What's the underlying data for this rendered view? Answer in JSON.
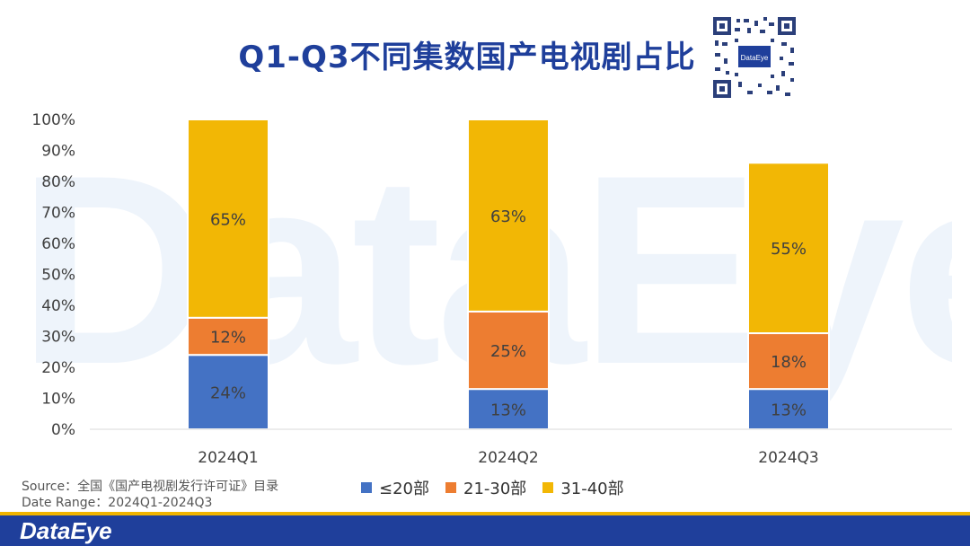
{
  "watermark": "DataEye",
  "title": "Q1-Q3不同集数国产电视剧占比",
  "qr": {
    "label": "DataEye"
  },
  "source_line": "Source：全国《国产电视剧发行许可证》目录",
  "date_line": "Date Range：2024Q1-2024Q3",
  "footer": {
    "logo": "DataEye"
  },
  "colors": {
    "blue": "#4472c4",
    "orange": "#ed7d31",
    "yellow": "#f2b705",
    "title": "#1f3f9b"
  },
  "chart_data": {
    "type": "bar",
    "stacked": true,
    "title": "Q1-Q3不同集数国产电视剧占比",
    "categories": [
      "2024Q1",
      "2024Q2",
      "2024Q3"
    ],
    "series": [
      {
        "name": "≤20部",
        "values": [
          24,
          13,
          13
        ],
        "labels": [
          "24%",
          "13%",
          "13%"
        ],
        "color": "#4472c4"
      },
      {
        "name": "21-30部",
        "values": [
          12,
          25,
          18
        ],
        "labels": [
          "12%",
          "25%",
          "18%"
        ],
        "color": "#ed7d31"
      },
      {
        "name": "31-40部",
        "values": [
          65,
          63,
          55
        ],
        "labels": [
          "65%",
          "63%",
          "55%"
        ],
        "color": "#f2b705"
      }
    ],
    "ylim": [
      0,
      100
    ],
    "yticks": [
      "0%",
      "10%",
      "20%",
      "30%",
      "40%",
      "50%",
      "60%",
      "70%",
      "80%",
      "90%",
      "100%"
    ],
    "legend": "bottom",
    "grid": false
  }
}
